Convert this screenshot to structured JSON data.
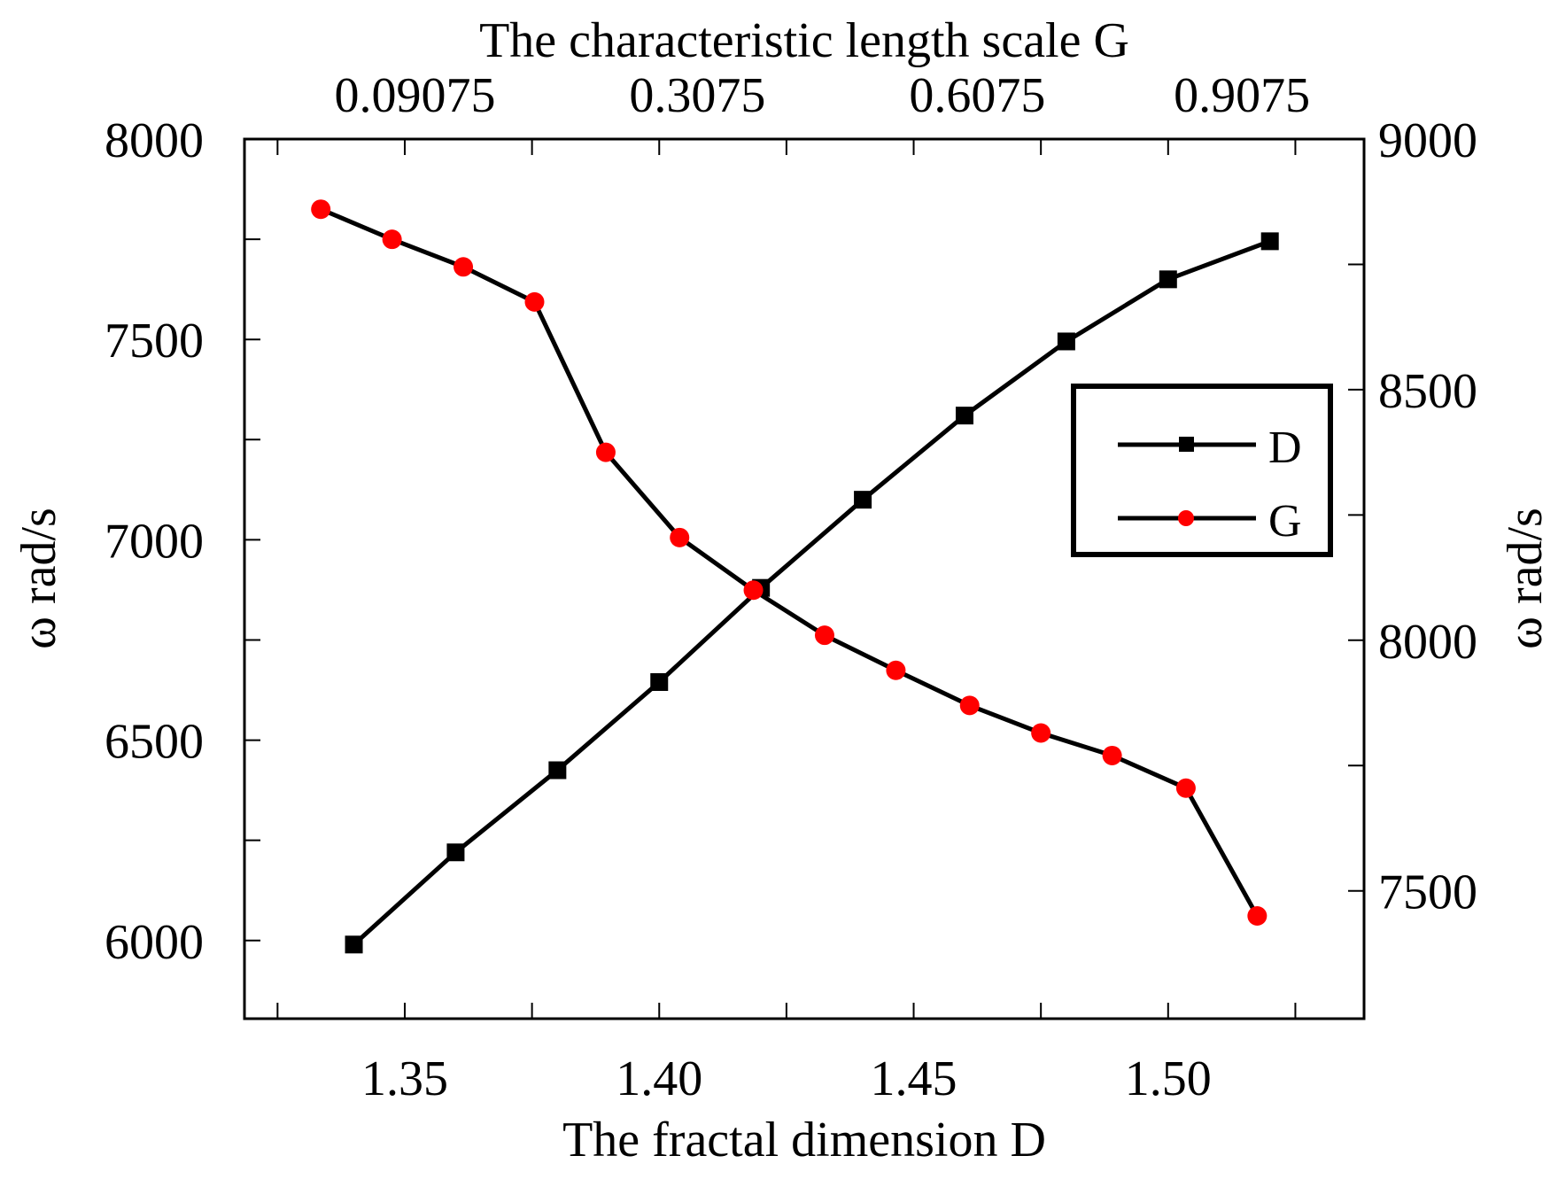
{
  "chart_data": {
    "type": "line",
    "title": "",
    "bottom_axis": {
      "label": "The fractal dimension D",
      "range": [
        1.3185,
        1.5385
      ],
      "tick_labels": [
        {
          "value": 1.35,
          "text": "1.35"
        },
        {
          "value": 1.4,
          "text": "1.40"
        },
        {
          "value": 1.45,
          "text": "1.45"
        },
        {
          "value": 1.5,
          "text": "1.50"
        }
      ],
      "minor_ticks": [
        1.325,
        1.375,
        1.425,
        1.475,
        1.525
      ]
    },
    "top_axis": {
      "label": "The characteristic length scale G",
      "tick_labels": [
        {
          "at_x": 1.352,
          "text": "0.09075"
        },
        {
          "at_x": 1.4075,
          "text": "0.3075"
        },
        {
          "at_x": 1.4625,
          "text": "0.6075"
        },
        {
          "at_x": 1.5145,
          "text": "0.9075"
        }
      ]
    },
    "left_axis": {
      "label": "ω rad/s",
      "range": [
        5805,
        8000
      ],
      "tick_labels": [
        {
          "value": 6000,
          "text": "6000"
        },
        {
          "value": 6500,
          "text": "6500"
        },
        {
          "value": 7000,
          "text": "7000"
        },
        {
          "value": 7500,
          "text": "7500"
        },
        {
          "value": 8000,
          "text": "8000"
        }
      ],
      "minor_ticks": [
        6250,
        6750,
        7250,
        7750
      ]
    },
    "right_axis": {
      "label": "ω rad/s",
      "range": [
        7245,
        9000
      ],
      "tick_labels": [
        {
          "value": 7500,
          "text": "7500"
        },
        {
          "value": 8000,
          "text": "8000"
        },
        {
          "value": 8500,
          "text": "8500"
        },
        {
          "value": 9000,
          "text": "9000"
        }
      ],
      "minor_ticks": [
        7750,
        8250,
        8750
      ]
    },
    "series": [
      {
        "name": "D",
        "axis": "left",
        "marker": "square",
        "color": "#000000",
        "x": [
          1.34,
          1.36,
          1.38,
          1.4,
          1.42,
          1.44,
          1.46,
          1.48,
          1.5,
          1.52
        ],
        "y": [
          5990,
          6220,
          6425,
          6645,
          6880,
          7100,
          7310,
          7495,
          7650,
          7745
        ]
      },
      {
        "name": "G",
        "axis": "right",
        "marker": "circle",
        "color": "#ff0000",
        "x": [
          1.3335,
          1.3475,
          1.3615,
          1.3755,
          1.3895,
          1.404,
          1.4185,
          1.4325,
          1.4465,
          1.461,
          1.475,
          1.489,
          1.5035,
          1.5175
        ],
        "y": [
          8860,
          8800,
          8745,
          8675,
          8375,
          8205,
          8100,
          8010,
          7940,
          7870,
          7815,
          7770,
          7705,
          7450
        ]
      }
    ],
    "legend": {
      "position": "right-middle",
      "entries": [
        "D",
        "G"
      ]
    },
    "grid": false
  }
}
